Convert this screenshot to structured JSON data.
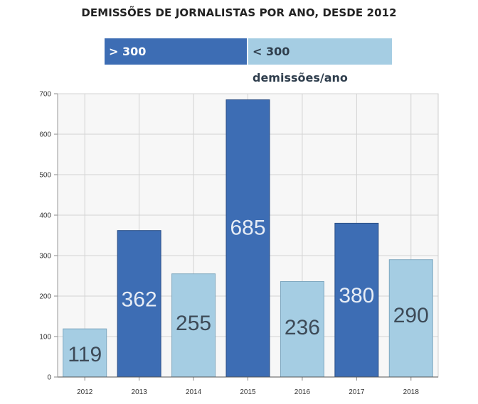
{
  "chart_data": {
    "type": "bar",
    "title": "DEMISSÕES DE JORNALISTAS POR ANO, DESDE 2012",
    "categories": [
      "2012",
      "2013",
      "2014",
      "2015",
      "2016",
      "2017",
      "2018"
    ],
    "values": [
      119,
      362,
      255,
      685,
      236,
      380,
      290
    ],
    "data_labels": [
      "119",
      "362",
      "255",
      "685",
      "236",
      "380",
      "290"
    ],
    "yticks": [
      "0",
      "100",
      "200",
      "300",
      "400",
      "500",
      "600",
      "700"
    ],
    "ylim": [
      0,
      700
    ],
    "grid": true,
    "legend": [
      {
        "label": "> 300 demissões/ano",
        "color": "#3d6db4"
      },
      {
        "label": "< 300 demissões/ano",
        "color": "#a5cde3"
      }
    ],
    "colors": {
      "high": "#3d6db4",
      "low": "#a5cde3",
      "label_on_high": "#e6ecf5",
      "label_on_low": "#3d4a57"
    },
    "threshold": 300
  }
}
